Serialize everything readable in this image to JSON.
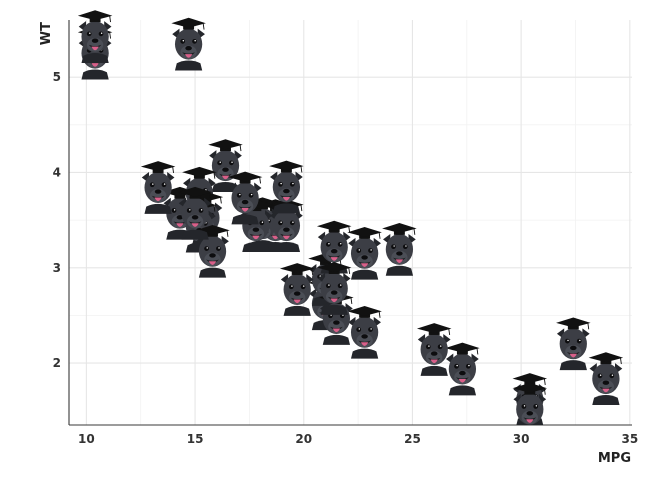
{
  "chart_data": {
    "type": "scatter",
    "title": "",
    "xlabel": "MPG",
    "ylabel": "WT",
    "xlim": [
      9.2,
      35.1
    ],
    "ylim": [
      1.35,
      5.6
    ],
    "x_ticks": [
      10,
      15,
      20,
      25,
      30,
      35
    ],
    "y_ticks": [
      2,
      3,
      4,
      5
    ],
    "grid": true,
    "marker": "dog-with-graduation-cap-icon",
    "x": [
      21.0,
      21.0,
      22.8,
      21.4,
      18.7,
      18.1,
      14.3,
      24.4,
      22.8,
      19.2,
      17.8,
      16.4,
      17.3,
      15.2,
      10.4,
      10.4,
      14.7,
      32.4,
      30.4,
      33.9,
      21.5,
      15.5,
      15.2,
      13.3,
      19.2,
      27.3,
      26.0,
      30.4,
      15.8,
      19.7,
      15.0,
      21.4
    ],
    "y": [
      2.62,
      2.875,
      2.32,
      3.215,
      3.44,
      3.46,
      3.57,
      3.19,
      3.15,
      3.44,
      3.44,
      4.07,
      3.73,
      3.78,
      5.25,
      5.424,
      5.345,
      2.2,
      1.615,
      1.835,
      2.465,
      3.52,
      3.435,
      3.84,
      3.845,
      1.935,
      2.14,
      1.513,
      3.17,
      2.77,
      3.57,
      2.78
    ]
  },
  "colors": {
    "grid": "#e6e6e6",
    "axis": "#3a3a3a",
    "dog_fur": "#3c3e45",
    "dog_fur_dark": "#24262b",
    "cap": "#111111",
    "tongue": "#d9608a"
  }
}
